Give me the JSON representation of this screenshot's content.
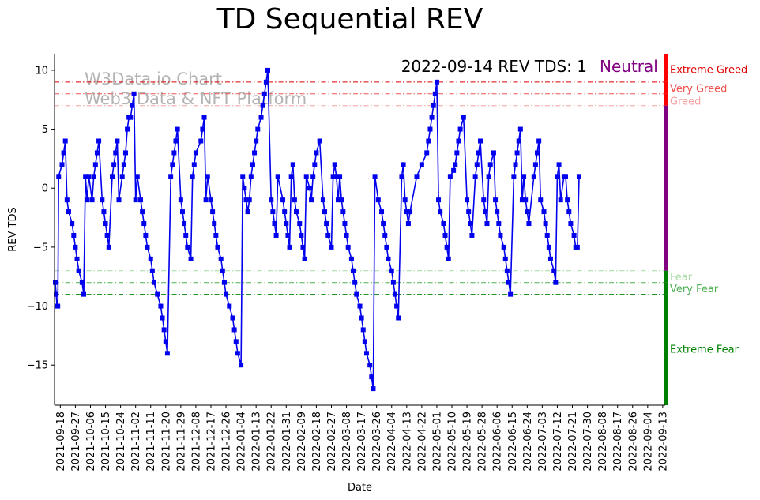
{
  "chart_data": {
    "type": "line",
    "title": "TD Sequential REV",
    "xlabel": "Date",
    "ylabel": "REV TDS",
    "ylim": [
      -18.4,
      11.4
    ],
    "yticks": [
      10,
      5,
      0,
      -5,
      -10,
      -15
    ],
    "start_date": "2021-09-15",
    "end_date": "2022-09-14",
    "xtick_labels": [
      "2021-09-18",
      "2021-09-27",
      "2021-10-06",
      "2021-10-15",
      "2021-10-24",
      "2021-11-02",
      "2021-11-11",
      "2021-11-20",
      "2021-11-29",
      "2021-12-08",
      "2021-12-17",
      "2021-12-26",
      "2022-01-04",
      "2022-01-13",
      "2022-01-22",
      "2022-01-31",
      "2022-02-09",
      "2022-02-18",
      "2022-02-27",
      "2022-03-08",
      "2022-03-17",
      "2022-03-26",
      "2022-04-04",
      "2022-04-13",
      "2022-04-22",
      "2022-05-01",
      "2022-05-10",
      "2022-05-19",
      "2022-05-28",
      "2022-06-06",
      "2022-06-15",
      "2022-06-24",
      "2022-07-03",
      "2022-07-12",
      "2022-07-21",
      "2022-07-30",
      "2022-08-08",
      "2022-08-17",
      "2022-08-26",
      "2022-09-04",
      "2022-09-13"
    ],
    "series": [
      {
        "name": "REV TDS",
        "color": "#0000ee",
        "points": [
          [
            0,
            -8
          ],
          [
            0.5,
            -9
          ],
          [
            1,
            -10
          ],
          [
            1.5,
            -10
          ],
          [
            2,
            1
          ],
          [
            4,
            2
          ],
          [
            5,
            3
          ],
          [
            6,
            4
          ],
          [
            7,
            -1
          ],
          [
            8,
            -2
          ],
          [
            10,
            -3
          ],
          [
            11,
            -4
          ],
          [
            12,
            -5
          ],
          [
            13,
            -6
          ],
          [
            14,
            -7
          ],
          [
            16,
            -8
          ],
          [
            17,
            -9
          ],
          [
            18,
            1
          ],
          [
            19,
            -1
          ],
          [
            20,
            1
          ],
          [
            22,
            -1
          ],
          [
            23,
            1
          ],
          [
            24,
            2
          ],
          [
            25,
            3
          ],
          [
            26,
            4
          ],
          [
            28,
            -1
          ],
          [
            29,
            -2
          ],
          [
            30,
            -3
          ],
          [
            31,
            -4
          ],
          [
            32,
            -5
          ],
          [
            34,
            1
          ],
          [
            35,
            2
          ],
          [
            36,
            3
          ],
          [
            37,
            4
          ],
          [
            38,
            -1
          ],
          [
            40,
            1
          ],
          [
            41,
            2
          ],
          [
            42,
            3
          ],
          [
            43,
            5
          ],
          [
            44,
            6
          ],
          [
            45,
            6
          ],
          [
            46,
            7
          ],
          [
            47,
            8
          ],
          [
            48,
            -1
          ],
          [
            49,
            1
          ],
          [
            51,
            -1
          ],
          [
            52,
            -2
          ],
          [
            53,
            -3
          ],
          [
            54,
            -4
          ],
          [
            55,
            -5
          ],
          [
            57,
            -6
          ],
          [
            58,
            -7
          ],
          [
            59,
            -8
          ],
          [
            61,
            -9
          ],
          [
            63,
            -10
          ],
          [
            64,
            -11
          ],
          [
            65,
            -12
          ],
          [
            66,
            -13
          ],
          [
            67,
            -14
          ],
          [
            69,
            1
          ],
          [
            70,
            2
          ],
          [
            71,
            3
          ],
          [
            72,
            4
          ],
          [
            73,
            5
          ],
          [
            75,
            -1
          ],
          [
            76,
            -2
          ],
          [
            77,
            -3
          ],
          [
            78,
            -4
          ],
          [
            79,
            -5
          ],
          [
            81,
            -6
          ],
          [
            82,
            1
          ],
          [
            83,
            2
          ],
          [
            84,
            3
          ],
          [
            87,
            4
          ],
          [
            88,
            5
          ],
          [
            89,
            6
          ],
          [
            90,
            -1
          ],
          [
            91,
            1
          ],
          [
            93,
            -1
          ],
          [
            94,
            -2
          ],
          [
            95,
            -3
          ],
          [
            96,
            -4
          ],
          [
            97,
            -5
          ],
          [
            99,
            -6
          ],
          [
            100,
            -7
          ],
          [
            101,
            -8
          ],
          [
            102,
            -9
          ],
          [
            104,
            -10
          ],
          [
            106,
            -11
          ],
          [
            107,
            -12
          ],
          [
            108,
            -13
          ],
          [
            109,
            -14
          ],
          [
            111,
            -15
          ],
          [
            112,
            1
          ],
          [
            113,
            0
          ],
          [
            114,
            -1
          ],
          [
            115,
            -2
          ],
          [
            116,
            -1
          ],
          [
            117,
            1
          ],
          [
            118,
            2
          ],
          [
            119,
            3
          ],
          [
            120,
            4
          ],
          [
            121,
            5
          ],
          [
            123,
            6
          ],
          [
            124,
            7
          ],
          [
            125,
            8
          ],
          [
            126,
            9
          ],
          [
            127,
            10
          ],
          [
            129,
            -1
          ],
          [
            130,
            -2
          ],
          [
            131,
            -3
          ],
          [
            132,
            -4
          ],
          [
            133,
            1
          ],
          [
            136,
            -1
          ],
          [
            137,
            -2
          ],
          [
            138,
            -3
          ],
          [
            139,
            -4
          ],
          [
            140,
            -5
          ],
          [
            141,
            1
          ],
          [
            142,
            2
          ],
          [
            143,
            -1
          ],
          [
            144,
            -2
          ],
          [
            146,
            -3
          ],
          [
            147,
            -4
          ],
          [
            148,
            -5
          ],
          [
            149,
            -6
          ],
          [
            150,
            1
          ],
          [
            152,
            0
          ],
          [
            153,
            -1
          ],
          [
            154,
            1
          ],
          [
            155,
            2
          ],
          [
            156,
            3
          ],
          [
            158,
            4
          ],
          [
            160,
            -1
          ],
          [
            161,
            -2
          ],
          [
            162,
            -3
          ],
          [
            163,
            -4
          ],
          [
            165,
            -5
          ],
          [
            166,
            1
          ],
          [
            167,
            2
          ],
          [
            168,
            1
          ],
          [
            169,
            -1
          ],
          [
            170,
            1
          ],
          [
            171,
            -1
          ],
          [
            172,
            -2
          ],
          [
            173,
            -3
          ],
          [
            174,
            -4
          ],
          [
            175,
            -5
          ],
          [
            177,
            -6
          ],
          [
            178,
            -7
          ],
          [
            179,
            -8
          ],
          [
            180,
            -9
          ],
          [
            182,
            -10
          ],
          [
            183,
            -11
          ],
          [
            184,
            -12
          ],
          [
            185,
            -13
          ],
          [
            186,
            -14
          ],
          [
            188,
            -15
          ],
          [
            189,
            -16
          ],
          [
            190,
            -17
          ],
          [
            191,
            1
          ],
          [
            193,
            -1
          ],
          [
            195,
            -2
          ],
          [
            196,
            -3
          ],
          [
            197,
            -4
          ],
          [
            198,
            -5
          ],
          [
            199,
            -6
          ],
          [
            201,
            -7
          ],
          [
            202,
            -8
          ],
          [
            203,
            -9
          ],
          [
            204,
            -10
          ],
          [
            205,
            -11
          ],
          [
            207,
            1
          ],
          [
            208,
            2
          ],
          [
            209,
            -1
          ],
          [
            210,
            -2
          ],
          [
            211,
            -3
          ],
          [
            212,
            -2
          ],
          [
            216,
            1
          ],
          [
            219,
            2
          ],
          [
            222,
            3
          ],
          [
            223,
            4
          ],
          [
            224,
            5
          ],
          [
            225,
            6
          ],
          [
            226,
            7
          ],
          [
            227,
            8
          ],
          [
            228,
            9
          ],
          [
            229,
            -1
          ],
          [
            230,
            -2
          ],
          [
            232,
            -3
          ],
          [
            233,
            -4
          ],
          [
            234,
            -5
          ],
          [
            235,
            -6
          ],
          [
            236,
            1
          ],
          [
            238,
            1.5
          ],
          [
            239,
            2
          ],
          [
            240,
            3
          ],
          [
            241,
            4
          ],
          [
            242,
            5
          ],
          [
            244,
            6
          ],
          [
            246,
            -1
          ],
          [
            247,
            -2
          ],
          [
            248,
            -3
          ],
          [
            249,
            -4
          ],
          [
            251,
            1
          ],
          [
            252,
            2
          ],
          [
            253,
            3
          ],
          [
            254,
            4
          ],
          [
            256,
            -1
          ],
          [
            257,
            -2
          ],
          [
            258,
            -3
          ],
          [
            259,
            1
          ],
          [
            260,
            2
          ],
          [
            262,
            3
          ],
          [
            263,
            -1
          ],
          [
            264,
            -2
          ],
          [
            265,
            -3
          ],
          [
            266,
            -4
          ],
          [
            268,
            -5
          ],
          [
            269,
            -6
          ],
          [
            270,
            -7
          ],
          [
            271,
            -8
          ],
          [
            272,
            -9
          ],
          [
            274,
            1
          ],
          [
            275,
            2
          ],
          [
            276,
            3
          ],
          [
            277,
            4
          ],
          [
            278,
            5
          ],
          [
            279,
            -1
          ],
          [
            280,
            1
          ],
          [
            281,
            -1
          ],
          [
            282,
            -2
          ],
          [
            283,
            -3
          ],
          [
            286,
            1
          ],
          [
            287,
            2
          ],
          [
            288,
            3
          ],
          [
            289,
            4
          ],
          [
            290,
            -1
          ],
          [
            292,
            -2
          ],
          [
            293,
            -3
          ],
          [
            294,
            -4
          ],
          [
            295,
            -5
          ],
          [
            296,
            -6
          ],
          [
            298,
            -7
          ],
          [
            299,
            -8
          ],
          [
            300,
            1
          ],
          [
            301,
            2
          ],
          [
            302,
            -1
          ],
          [
            304,
            1
          ],
          [
            305,
            1
          ],
          [
            306,
            -1
          ],
          [
            307,
            -2
          ],
          [
            308,
            -3
          ],
          [
            310,
            -4
          ],
          [
            311,
            -5
          ],
          [
            312,
            -5
          ],
          [
            313,
            1
          ]
        ]
      }
    ],
    "reference_lines": [
      {
        "label": "Extreme Greed",
        "value": 9,
        "color": "#dd0000"
      },
      {
        "label": "Very Greed",
        "value": 8,
        "color": "#ee5555"
      },
      {
        "label": "Greed",
        "value": 7,
        "color": "#f4a0a0"
      },
      {
        "label": "Fear",
        "value": -7,
        "color": "#a6d9a6"
      },
      {
        "label": "Very Fear",
        "value": -8,
        "color": "#4caf50"
      },
      {
        "label": "Extreme Fear",
        "value": -9,
        "color": "#008800"
      }
    ],
    "zones": [
      {
        "label": "Extreme Greed",
        "from": 9,
        "to": 11.4,
        "color": "#ff0000",
        "text_color": "#e00000",
        "label_value": 10.1
      },
      {
        "label": "Very Greed",
        "from": 8,
        "to": 9,
        "color": "#ff0000",
        "text_color": "#ef5350",
        "label_value": 8.5
      },
      {
        "label": "Greed",
        "from": 7,
        "to": 8,
        "color": "#ff0000",
        "text_color": "#f4a0a0",
        "label_value": 7.4
      },
      {
        "label": "Neutral",
        "from": -7,
        "to": 7,
        "color": "#800080",
        "text_color": "#800080",
        "label_value": null
      },
      {
        "label": "Fear",
        "from": -8,
        "to": -7,
        "color": "#008000",
        "text_color": "#a6d9a6",
        "label_value": -7.5
      },
      {
        "label": "Very Fear",
        "from": -9,
        "to": -8,
        "color": "#008000",
        "text_color": "#4caf50",
        "label_value": -8.5
      },
      {
        "label": "Extreme Fear",
        "from": -18.4,
        "to": -9,
        "color": "#008000",
        "text_color": "#008000",
        "label_value": -13.6
      }
    ],
    "current_marker": {
      "from": -6.8,
      "to": 1,
      "color": "#800080"
    },
    "status_label": "2022-09-14 REV TDS: 1",
    "status_sentiment": "Neutral",
    "status_color": "#800080",
    "watermark": [
      "W3Data.io Chart",
      "Web3 Data & NFT Platform"
    ]
  }
}
